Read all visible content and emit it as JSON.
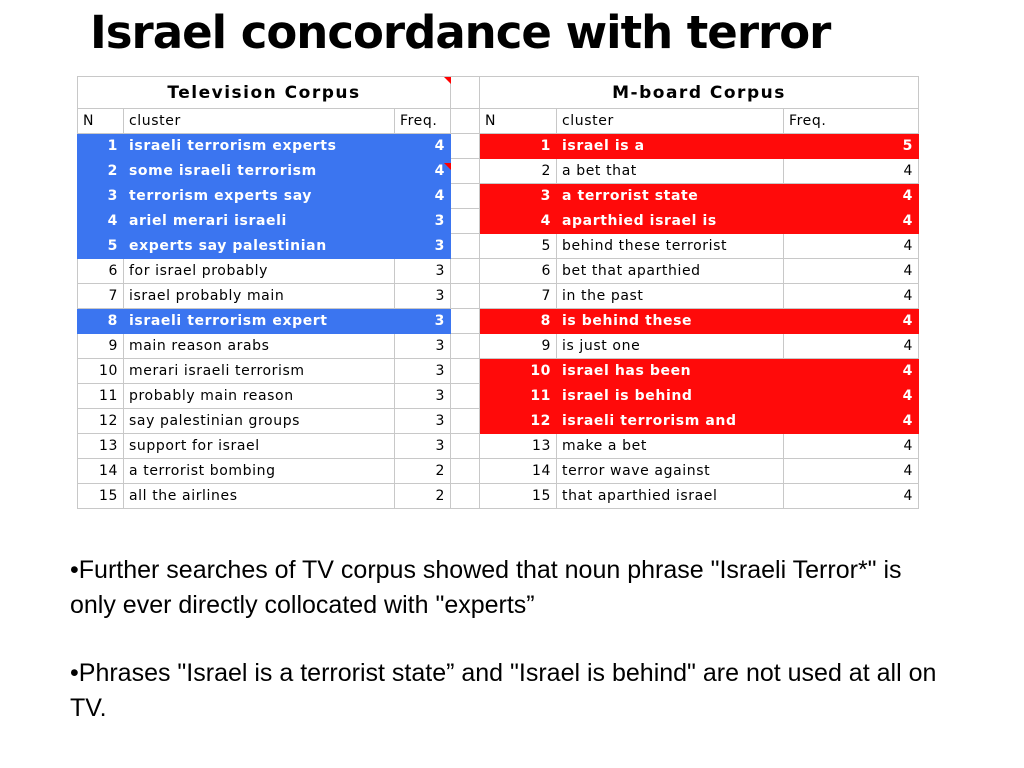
{
  "title": "Israel concordance with terror",
  "bullet_glyph": "•",
  "tv": {
    "heading": "Television Corpus",
    "col_n": "N",
    "col_cluster": "cluster",
    "col_freq": "Freq.",
    "rows": [
      {
        "n": "1",
        "cluster": "israeli terrorism experts",
        "freq": "4",
        "highlight": true
      },
      {
        "n": "2",
        "cluster": "some israeli terrorism",
        "freq": "4",
        "highlight": true
      },
      {
        "n": "3",
        "cluster": "terrorism experts say",
        "freq": "4",
        "highlight": true
      },
      {
        "n": "4",
        "cluster": "ariel merari israeli",
        "freq": "3",
        "highlight": true
      },
      {
        "n": "5",
        "cluster": "experts say palestinian",
        "freq": "3",
        "highlight": true
      },
      {
        "n": "6",
        "cluster": "for israel probably",
        "freq": "3",
        "highlight": false
      },
      {
        "n": "7",
        "cluster": "israel probably main",
        "freq": "3",
        "highlight": false
      },
      {
        "n": "8",
        "cluster": "israeli terrorism expert",
        "freq": "3",
        "highlight": true
      },
      {
        "n": "9",
        "cluster": "main reason arabs",
        "freq": "3",
        "highlight": false
      },
      {
        "n": "10",
        "cluster": "merari israeli terrorism",
        "freq": "3",
        "highlight": false
      },
      {
        "n": "11",
        "cluster": "probably main reason",
        "freq": "3",
        "highlight": false
      },
      {
        "n": "12",
        "cluster": "say palestinian groups",
        "freq": "3",
        "highlight": false
      },
      {
        "n": "13",
        "cluster": "support for israel",
        "freq": "3",
        "highlight": false
      },
      {
        "n": "14",
        "cluster": "a terrorist bombing",
        "freq": "2",
        "highlight": false
      },
      {
        "n": "15",
        "cluster": "all the airlines",
        "freq": "2",
        "highlight": false
      }
    ]
  },
  "mboard": {
    "heading": "M-board Corpus",
    "col_n": "N",
    "col_cluster": "cluster",
    "col_freq": "Freq.",
    "rows": [
      {
        "n": "1",
        "cluster": "israel is a",
        "freq": "5",
        "highlight": true
      },
      {
        "n": "2",
        "cluster": "a bet that",
        "freq": "4",
        "highlight": false
      },
      {
        "n": "3",
        "cluster": "a terrorist state",
        "freq": "4",
        "highlight": true
      },
      {
        "n": "4",
        "cluster": "aparthied israel is",
        "freq": "4",
        "highlight": true
      },
      {
        "n": "5",
        "cluster": "behind these terrorist",
        "freq": "4",
        "highlight": false
      },
      {
        "n": "6",
        "cluster": "bet that aparthied",
        "freq": "4",
        "highlight": false
      },
      {
        "n": "7",
        "cluster": "in the past",
        "freq": "4",
        "highlight": false
      },
      {
        "n": "8",
        "cluster": "is behind these",
        "freq": "4",
        "highlight": true
      },
      {
        "n": "9",
        "cluster": "is just one",
        "freq": "4",
        "highlight": false
      },
      {
        "n": "10",
        "cluster": "israel has been",
        "freq": "4",
        "highlight": true
      },
      {
        "n": "11",
        "cluster": "israel is behind",
        "freq": "4",
        "highlight": true
      },
      {
        "n": "12",
        "cluster": "israeli terrorism and",
        "freq": "4",
        "highlight": true
      },
      {
        "n": "13",
        "cluster": "make a bet",
        "freq": "4",
        "highlight": false
      },
      {
        "n": "14",
        "cluster": "terror wave against",
        "freq": "4",
        "highlight": false
      },
      {
        "n": "15",
        "cluster": "that aparthied israel",
        "freq": "4",
        "highlight": false
      }
    ]
  },
  "colors": {
    "tv_highlight": "#3b75f0",
    "mboard_highlight": "#ff0a0a",
    "marker": "#ff0000"
  },
  "bullets": [
    "Further searches of TV corpus showed that noun phrase \"Israeli Terror*\" is only ever directly collocated with \"experts”",
    "Phrases \"Israel is a terrorist state” and \"Israel is behind\" are not used at all on TV."
  ]
}
